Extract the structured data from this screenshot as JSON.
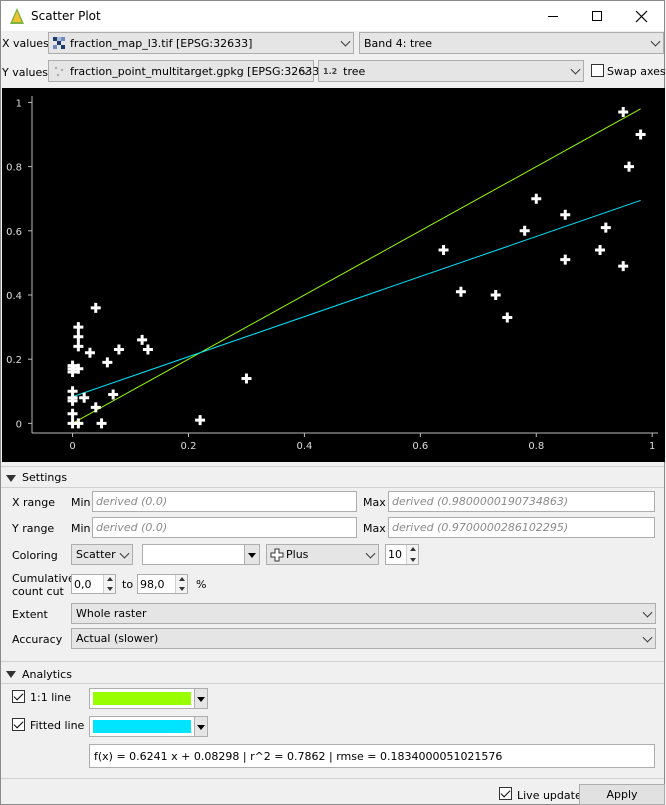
{
  "window": {
    "title": "Scatter Plot"
  },
  "xrow": {
    "label": "X values",
    "layer": "fraction_map_l3.tif [EPSG:32633]",
    "band": "Band 4: tree"
  },
  "yrow": {
    "label": "Y values",
    "layer": "fraction_point_multitarget.gpkg [EPSG:32633]",
    "field_type": "1.2",
    "field": "tree",
    "swap_label": "Swap axes",
    "swap_checked": false
  },
  "chart_data": {
    "type": "scatter",
    "title": "",
    "xlabel": "",
    "ylabel": "",
    "xlim": [
      -0.07,
      1.01
    ],
    "ylim": [
      -0.03,
      1.02
    ],
    "xticks": [
      "0",
      "0.2",
      "0.4",
      "0.6",
      "0.8",
      "1"
    ],
    "yticks": [
      "0",
      "0.2",
      "0.4",
      "0.6",
      "0.8",
      "1"
    ],
    "xtick_values": [
      0,
      0.2,
      0.4,
      0.6,
      0.8,
      1
    ],
    "ytick_values": [
      0,
      0.2,
      0.4,
      0.6,
      0.8,
      1
    ],
    "grid": false,
    "background": "#000000",
    "marker": "plus",
    "marker_color": "#ffffff",
    "points": [
      [
        0.0,
        0.16
      ],
      [
        0.0,
        0.17
      ],
      [
        0.0,
        0.18
      ],
      [
        0.0,
        0.1
      ],
      [
        0.0,
        0.08
      ],
      [
        0.0,
        0.07
      ],
      [
        0.0,
        0.03
      ],
      [
        0.0,
        0.0
      ],
      [
        0.01,
        0.3
      ],
      [
        0.01,
        0.27
      ],
      [
        0.01,
        0.24
      ],
      [
        0.01,
        0.17
      ],
      [
        0.01,
        0.0
      ],
      [
        0.02,
        0.08
      ],
      [
        0.03,
        0.22
      ],
      [
        0.04,
        0.36
      ],
      [
        0.04,
        0.05
      ],
      [
        0.05,
        0.0
      ],
      [
        0.06,
        0.19
      ],
      [
        0.07,
        0.09
      ],
      [
        0.08,
        0.23
      ],
      [
        0.12,
        0.26
      ],
      [
        0.13,
        0.23
      ],
      [
        0.22,
        0.01
      ],
      [
        0.3,
        0.14
      ],
      [
        0.64,
        0.54
      ],
      [
        0.67,
        0.41
      ],
      [
        0.73,
        0.4
      ],
      [
        0.75,
        0.33
      ],
      [
        0.78,
        0.6
      ],
      [
        0.8,
        0.7
      ],
      [
        0.85,
        0.65
      ],
      [
        0.85,
        0.51
      ],
      [
        0.91,
        0.54
      ],
      [
        0.92,
        0.61
      ],
      [
        0.95,
        0.97
      ],
      [
        0.95,
        0.49
      ],
      [
        0.96,
        0.8
      ],
      [
        0.98,
        0.9
      ]
    ],
    "lines": [
      {
        "name": "1:1 line",
        "color": "#99ff00",
        "slope": 1.0,
        "intercept": 0.0,
        "x_range": [
          0.0,
          0.98
        ]
      },
      {
        "name": "Fitted line",
        "color": "#00e5ff",
        "slope": 0.6241,
        "intercept": 0.08298,
        "x_range": [
          0.0,
          0.98
        ]
      }
    ]
  },
  "settings": {
    "header": "Settings",
    "xrange_label": "X range",
    "yrange_label": "Y range",
    "min_label": "Min",
    "max_label": "Max",
    "xmin_placeholder": "derived (0.0)",
    "xmax_placeholder": "derived (0.9800000190734863)",
    "ymin_placeholder": "derived (0.0)",
    "ymax_placeholder": "derived (0.9700000286102295)",
    "coloring_label": "Coloring",
    "coloring_mode": "Scatter",
    "coloring_color": "#ffffff",
    "symbol": "Plus",
    "symbol_size": "10",
    "cumcut_label_1": "Cumulative",
    "cumcut_label_2": "count cut",
    "cumcut_from": "0,0",
    "cumcut_to_label": "to",
    "cumcut_to": "98,0",
    "cumcut_unit": "%",
    "extent_label": "Extent",
    "extent_value": "Whole raster",
    "accuracy_label": "Accuracy",
    "accuracy_value": "Actual (slower)"
  },
  "analytics": {
    "header": "Analytics",
    "oneone_label": "1:1 line",
    "oneone_checked": true,
    "oneone_color": "#99ff00",
    "fitted_label": "Fitted line",
    "fitted_checked": true,
    "fitted_color": "#00e5ff",
    "formula": "f(x) = 0.6241 x + 0.08298 | r^2 = 0.7862 | rmse = 0.1834000051021576"
  },
  "footer": {
    "live_update_label": "Live update",
    "live_update_checked": true,
    "apply_label": "Apply"
  }
}
